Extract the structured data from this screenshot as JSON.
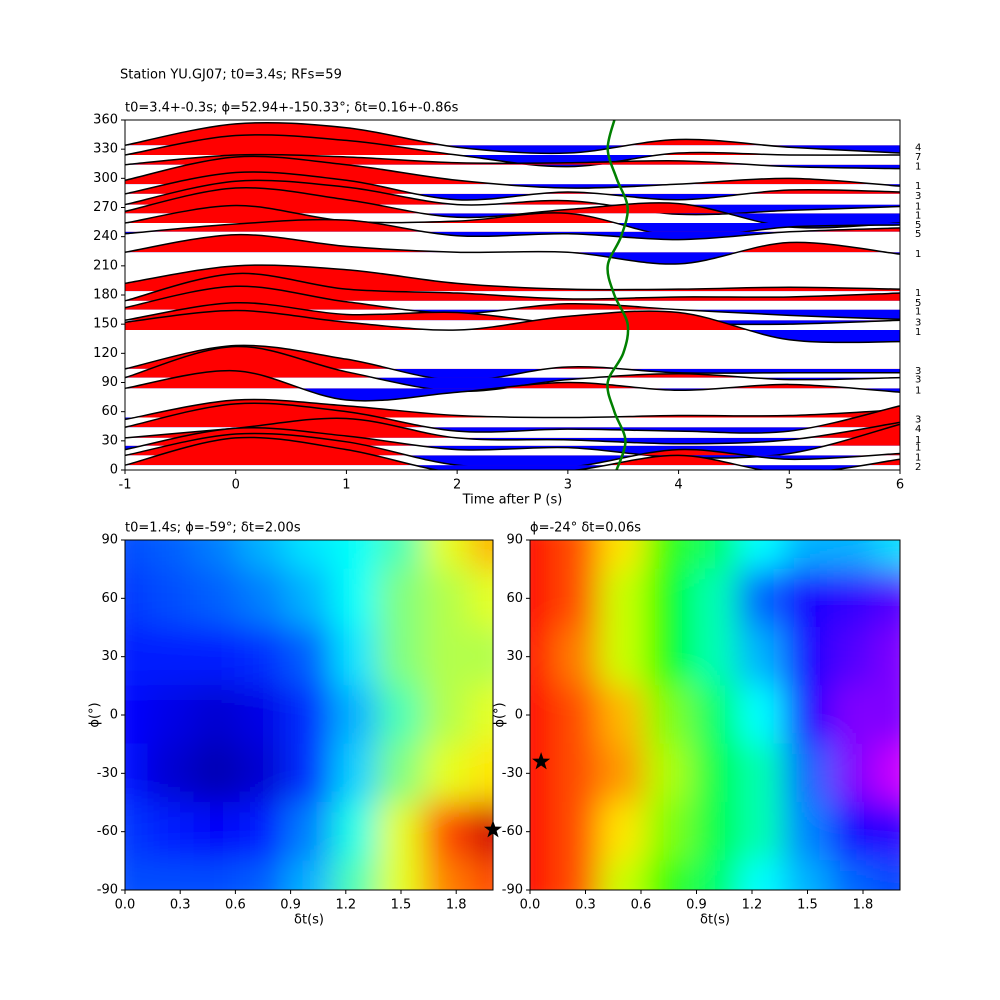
{
  "title": "Station YU.GJ07; t0=3.4s; RFs=59",
  "chart_data": [
    {
      "type": "wiggle",
      "title": "t0=3.4+-0.3s; ϕ=52.94+-150.33°; δt=0.16+-0.86s",
      "xlabel": "Time after P (s)",
      "xlim": [
        -1,
        6
      ],
      "xticks": [
        -1,
        0,
        1,
        2,
        3,
        4,
        5,
        6
      ],
      "ylim": [
        0,
        360
      ],
      "yticks": [
        0,
        30,
        60,
        90,
        120,
        150,
        180,
        210,
        240,
        270,
        300,
        330,
        360
      ],
      "positive_color": "#ff0000",
      "negative_color": "#0000ff",
      "line_color": "#000000",
      "x": [
        -1,
        0,
        1,
        2,
        3,
        4,
        5,
        6
      ],
      "traces": [
        {
          "baz": 334,
          "count": 4,
          "values": [
            0,
            22,
            18,
            -2,
            -8,
            6,
            -2,
            -8
          ]
        },
        {
          "baz": 324,
          "count": 7,
          "values": [
            0,
            20,
            15,
            0,
            -12,
            2,
            0,
            0
          ]
        },
        {
          "baz": 314,
          "count": 1,
          "values": [
            0,
            10,
            8,
            2,
            2,
            4,
            -2,
            -4
          ]
        },
        {
          "baz": 294,
          "count": 1,
          "values": [
            4,
            28,
            20,
            4,
            -4,
            0,
            6,
            -2
          ]
        },
        {
          "baz": 284,
          "count": 3,
          "values": [
            0,
            22,
            14,
            -6,
            2,
            -6,
            4,
            2
          ]
        },
        {
          "baz": 273,
          "count": 1,
          "values": [
            0,
            24,
            18,
            0,
            4,
            -10,
            -6,
            -2
          ]
        },
        {
          "baz": 264,
          "count": 1,
          "values": [
            2,
            26,
            14,
            -4,
            4,
            10,
            -14,
            -10
          ]
        },
        {
          "baz": 254,
          "count": 5,
          "values": [
            0,
            18,
            2,
            2,
            10,
            -14,
            -4,
            -2
          ]
        },
        {
          "baz": 245,
          "count": 5,
          "values": [
            -2,
            8,
            12,
            -4,
            -2,
            -8,
            0,
            4
          ]
        },
        {
          "baz": 224,
          "count": 1,
          "values": [
            0,
            18,
            6,
            0,
            0,
            -12,
            10,
            -2
          ]
        },
        {
          "baz": 184,
          "count": 1,
          "values": [
            8,
            26,
            22,
            8,
            2,
            2,
            4,
            2
          ]
        },
        {
          "baz": 174,
          "count": 5,
          "values": [
            0,
            28,
            12,
            8,
            2,
            4,
            4,
            8
          ]
        },
        {
          "baz": 165,
          "count": 1,
          "values": [
            2,
            24,
            8,
            -4,
            6,
            0,
            -6,
            -10
          ]
        },
        {
          "baz": 154,
          "count": 3,
          "values": [
            0,
            18,
            6,
            8,
            -4,
            -4,
            -4,
            0
          ]
        },
        {
          "baz": 144,
          "count": 1,
          "values": [
            8,
            20,
            8,
            0,
            14,
            18,
            -10,
            -12
          ]
        },
        {
          "baz": 104,
          "count": 3,
          "values": [
            0,
            24,
            10,
            -12,
            2,
            -4,
            -4,
            -4
          ]
        },
        {
          "baz": 95,
          "count": 3,
          "values": [
            0,
            32,
            6,
            -14,
            -2,
            4,
            -2,
            0
          ]
        },
        {
          "baz": 84,
          "count": 1,
          "values": [
            0,
            18,
            -12,
            -4,
            6,
            -2,
            4,
            -4
          ]
        },
        {
          "baz": 54,
          "count": 3,
          "values": [
            -2,
            18,
            12,
            2,
            0,
            2,
            2,
            8
          ]
        },
        {
          "baz": 44,
          "count": 4,
          "values": [
            0,
            24,
            16,
            -4,
            -2,
            -4,
            -4,
            22
          ]
        },
        {
          "baz": 33,
          "count": 1,
          "values": [
            0,
            10,
            20,
            0,
            -2,
            -6,
            -2,
            16
          ]
        },
        {
          "baz": 25,
          "count": 1,
          "values": [
            -4,
            18,
            10,
            -4,
            -2,
            -12,
            -8,
            22
          ]
        },
        {
          "baz": 15,
          "count": 1,
          "values": [
            0,
            22,
            14,
            -10,
            -12,
            6,
            -4,
            2
          ]
        },
        {
          "baz": 5,
          "count": 2,
          "values": [
            0,
            28,
            16,
            -8,
            -6,
            10,
            -8,
            6
          ]
        }
      ],
      "t0_curve": {
        "color": "#008000",
        "baz": [
          0,
          30,
          60,
          90,
          120,
          150,
          180,
          210,
          240,
          270,
          300,
          330,
          360
        ],
        "t0": [
          3.44,
          3.52,
          3.42,
          3.36,
          3.5,
          3.54,
          3.42,
          3.36,
          3.48,
          3.54,
          3.44,
          3.36,
          3.42
        ]
      }
    },
    {
      "type": "heatmap",
      "title": "t0=1.4s; ϕ=-59°; δt=2.00s",
      "xlabel": "δt(s)",
      "ylabel": "ϕ(°)",
      "colormap": "jet",
      "zlim": [
        0,
        1
      ],
      "xlim": [
        0,
        2
      ],
      "xticks": [
        {
          "value": 0,
          "label": "0.0"
        },
        0.3,
        0.6,
        0.9,
        1.2,
        1.5,
        1.8
      ],
      "ylim": [
        -90,
        90
      ],
      "yticks": [
        -90,
        -60,
        -30,
        0,
        30,
        60,
        90
      ],
      "x": [
        0,
        0.25,
        0.5,
        0.75,
        1,
        1.25,
        1.5,
        1.75,
        2
      ],
      "y": [
        90,
        60,
        30,
        0,
        -30,
        -60,
        -90
      ],
      "z": [
        [
          0.2,
          0.22,
          0.25,
          0.3,
          0.35,
          0.38,
          0.45,
          0.6,
          0.7
        ],
        [
          0.18,
          0.2,
          0.22,
          0.25,
          0.3,
          0.38,
          0.5,
          0.55,
          0.6
        ],
        [
          0.15,
          0.15,
          0.15,
          0.17,
          0.22,
          0.35,
          0.5,
          0.55,
          0.55
        ],
        [
          0.13,
          0.1,
          0.08,
          0.1,
          0.17,
          0.3,
          0.45,
          0.55,
          0.6
        ],
        [
          0.14,
          0.08,
          0.05,
          0.08,
          0.17,
          0.33,
          0.5,
          0.6,
          0.65
        ],
        [
          0.18,
          0.15,
          0.12,
          0.15,
          0.25,
          0.4,
          0.6,
          0.8,
          0.92
        ],
        [
          0.2,
          0.2,
          0.2,
          0.22,
          0.3,
          0.45,
          0.6,
          0.75,
          0.8
        ]
      ],
      "star": {
        "x": 2.0,
        "y": -59
      }
    },
    {
      "type": "heatmap",
      "title": "ϕ=-24° δt=0.06s",
      "xlabel": "δt(s)",
      "ylabel": "ϕ(°)",
      "colormap": "hsv",
      "zlim": [
        0,
        1
      ],
      "xlim": [
        0,
        2
      ],
      "xticks": [
        {
          "value": 0,
          "label": "0.0"
        },
        0.3,
        0.6,
        0.9,
        1.2,
        1.5,
        1.8
      ],
      "ylim": [
        -90,
        90
      ],
      "yticks": [
        -90,
        -60,
        -30,
        0,
        30,
        60,
        90
      ],
      "x": [
        0,
        0.25,
        0.5,
        0.75,
        1,
        1.25,
        1.5,
        1.75,
        2
      ],
      "y": [
        90,
        60,
        30,
        0,
        -30,
        -60,
        -90
      ],
      "z": [
        [
          0,
          0.05,
          0.15,
          0.3,
          0.4,
          0.5,
          0.55,
          0.55,
          0.52
        ],
        [
          0,
          0.05,
          0.2,
          0.33,
          0.45,
          0.6,
          0.68,
          0.7,
          0.72
        ],
        [
          0,
          0.08,
          0.2,
          0.33,
          0.45,
          0.55,
          0.68,
          0.72,
          0.75
        ],
        [
          0,
          0.05,
          0.12,
          0.25,
          0.4,
          0.5,
          0.68,
          0.75,
          0.75
        ],
        [
          0,
          0.05,
          0.1,
          0.22,
          0.38,
          0.45,
          0.6,
          0.75,
          0.8
        ],
        [
          0,
          0.05,
          0.15,
          0.25,
          0.38,
          0.45,
          0.58,
          0.68,
          0.7
        ],
        [
          0,
          0.05,
          0.2,
          0.3,
          0.4,
          0.5,
          0.55,
          0.6,
          0.62
        ]
      ],
      "star": {
        "x": 0.06,
        "y": -24
      }
    }
  ]
}
